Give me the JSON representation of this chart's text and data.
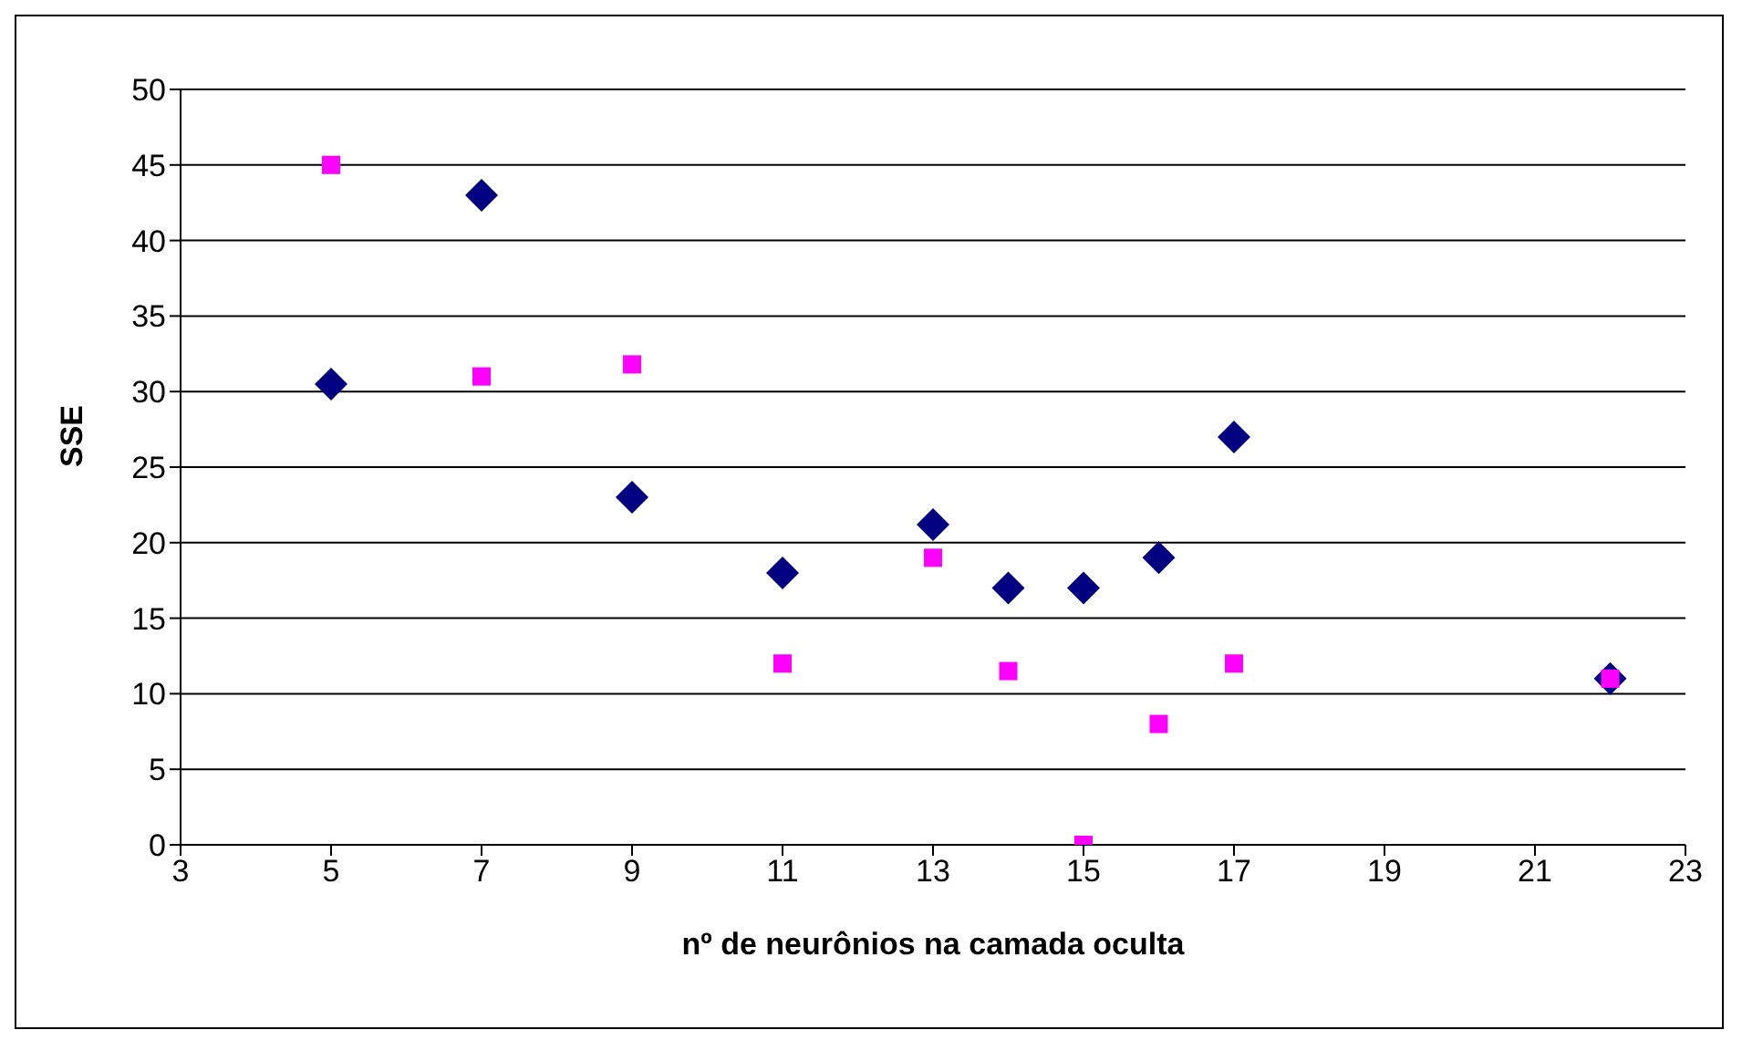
{
  "chart_data": {
    "type": "scatter",
    "xlabel": "nº de neurônios na camada oculta",
    "ylabel": "SSE",
    "x": [
      5,
      7,
      9,
      11,
      13,
      14,
      15,
      16,
      17,
      22
    ],
    "series": [
      {
        "color": "#000080",
        "marker": "diamond",
        "values": [
          30.5,
          43,
          23,
          18,
          21.2,
          17,
          17,
          19,
          27,
          11
        ]
      },
      {
        "color": "#ff00ff",
        "marker": "square",
        "values": [
          45,
          31,
          31.8,
          12,
          19,
          11.5,
          0,
          8,
          12,
          11
        ]
      }
    ],
    "xlim": [
      3,
      23
    ],
    "xticks": [
      3,
      5,
      7,
      9,
      11,
      13,
      15,
      17,
      19,
      21,
      23
    ],
    "ylim": [
      0,
      50
    ],
    "yticks": [
      0,
      5,
      10,
      15,
      20,
      25,
      30,
      35,
      40,
      45,
      50
    ],
    "grid": "y",
    "legend": false
  }
}
